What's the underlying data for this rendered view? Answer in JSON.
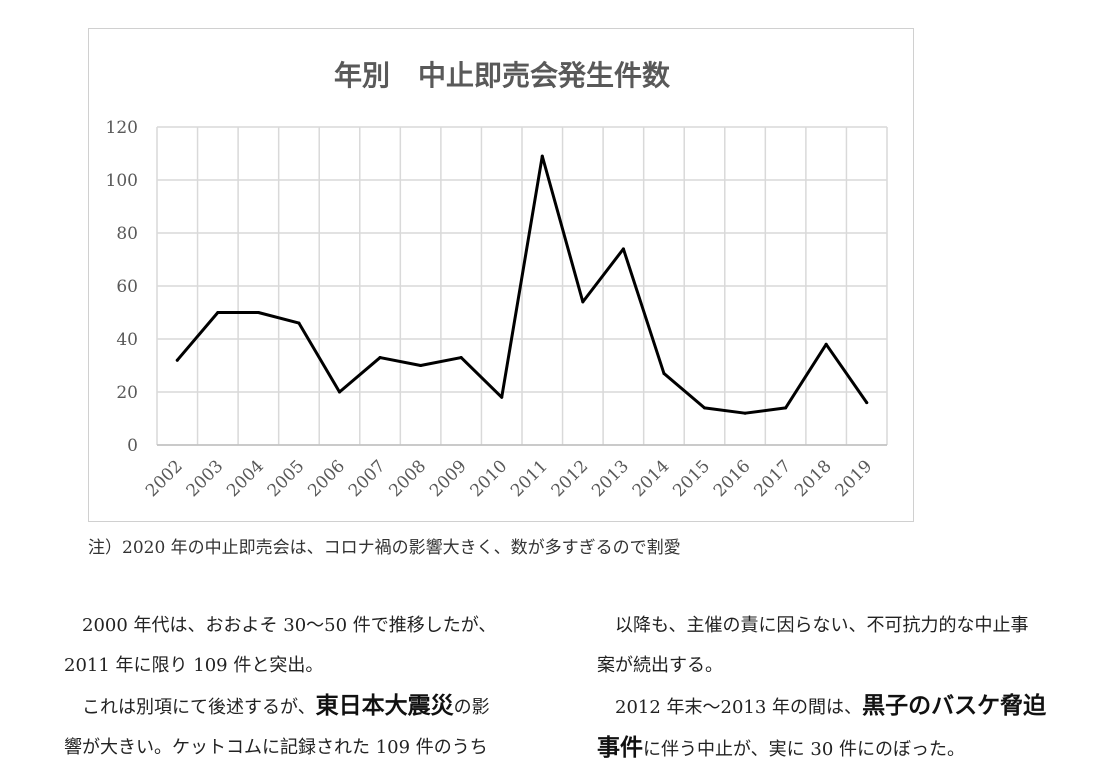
{
  "chart_data": {
    "type": "line",
    "title": "年別　中止即売会発生件数",
    "categories": [
      "2002",
      "2003",
      "2004",
      "2005",
      "2006",
      "2007",
      "2008",
      "2009",
      "2010",
      "2011",
      "2012",
      "2013",
      "2014",
      "2015",
      "2016",
      "2017",
      "2018",
      "2019"
    ],
    "values": [
      32,
      50,
      50,
      46,
      20,
      33,
      30,
      33,
      18,
      109,
      54,
      74,
      27,
      14,
      12,
      14,
      38,
      16
    ],
    "yticks": [
      "0",
      "20",
      "40",
      "60",
      "80",
      "100",
      "120"
    ],
    "ylim": [
      0,
      120
    ],
    "grid": true,
    "line_color": "#000000"
  },
  "note": "注）2020 年の中止即売会は、コロナ禍の影響大きく、数が多すぎるので割愛",
  "body": {
    "left": {
      "line1": "2000 年代は、おおよそ 30～50 件で推移したが、",
      "line2": "2011 年に限り 109 件と突出。",
      "line3_pre": "これは別項にて後述するが、",
      "line3_emph": "東日本大震災",
      "line3_post": "の影",
      "line4": "響が大きい。ケットコムに記録された 109 件のうち"
    },
    "right": {
      "line1": "以降も、主催の責に因らない、不可抗力的な中止事",
      "line2": "案が続出する。",
      "line3_pre": "2012 年末～2013 年の間は、",
      "line3_emph": "黒子のバスケ脅迫",
      "line4_emph": "事件",
      "line4_post": "に伴う中止が、実に 30 件にのぼった。"
    }
  }
}
